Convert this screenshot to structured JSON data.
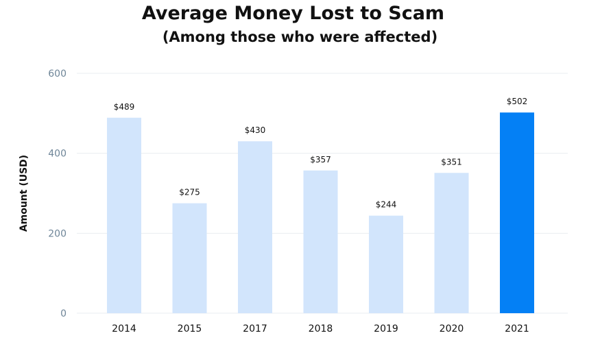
{
  "chart_data": {
    "type": "bar",
    "title": "Average Money Lost to Scam",
    "subtitle": "(Among those who were affected)",
    "xlabel": "",
    "ylabel": "Amount (USD)",
    "categories": [
      "2014",
      "2015",
      "2017",
      "2018",
      "2019",
      "2020",
      "2021"
    ],
    "values": [
      489,
      275,
      430,
      357,
      244,
      351,
      502
    ],
    "data_labels": [
      "$489",
      "$275",
      "$430",
      "$357",
      "$244",
      "$351",
      "$502"
    ],
    "ylim": [
      0,
      600
    ],
    "yticks": [
      0,
      200,
      400,
      600
    ],
    "grid": true,
    "legend": "none",
    "colors": {
      "bar": "#d2e5fc",
      "highlight_bar": "#0480f5",
      "highlight_category": "2021",
      "grid": "#e9edf0",
      "ytick_text": "#6e8598"
    }
  }
}
